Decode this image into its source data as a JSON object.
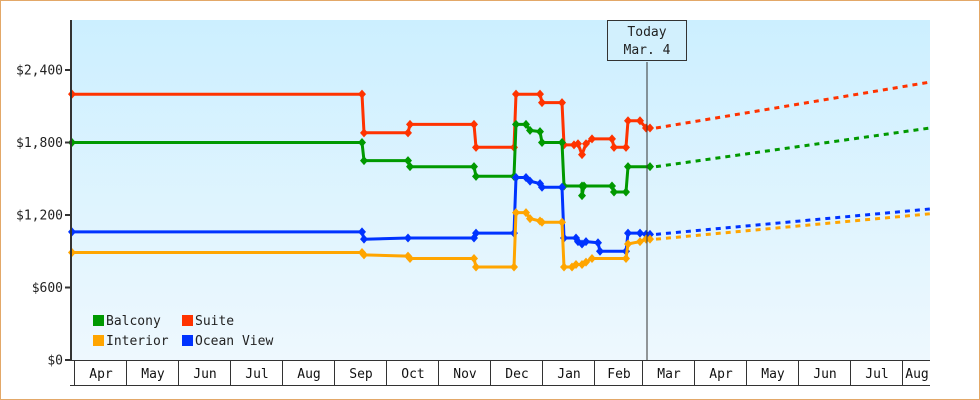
{
  "chart_data": {
    "type": "line",
    "title": "",
    "xlabel": "",
    "ylabel": "",
    "ylim": [
      0,
      2800
    ],
    "y_ticks": [
      "$0",
      "$600",
      "$1,200",
      "$1,800",
      "$2,400"
    ],
    "y_tick_values": [
      0,
      600,
      1200,
      1800,
      2400
    ],
    "x_months": [
      "Apr",
      "May",
      "Jun",
      "Jul",
      "Aug",
      "Sep",
      "Oct",
      "Nov",
      "Dec",
      "Jan",
      "Feb",
      "Mar",
      "Apr",
      "May",
      "Jun",
      "Jul",
      "Aug"
    ],
    "today_marker": {
      "line1": "Today",
      "line2": "Mar. 4"
    },
    "legend": [
      {
        "name": "Balcony",
        "color": "#009900"
      },
      {
        "name": "Suite",
        "color": "#ff3300"
      },
      {
        "name": "Interior",
        "color": "#ffa500"
      },
      {
        "name": "Ocean View",
        "color": "#0033ff"
      }
    ],
    "series": [
      {
        "name": "Suite",
        "color": "#ff3300",
        "points": [
          [
            72,
            2200
          ],
          [
            362,
            2200
          ],
          [
            364,
            1880
          ],
          [
            408,
            1880
          ],
          [
            410,
            1950
          ],
          [
            474,
            1950
          ],
          [
            476,
            1760
          ],
          [
            514,
            1760
          ],
          [
            516,
            2200
          ],
          [
            540,
            2200
          ],
          [
            542,
            2130
          ],
          [
            562,
            2130
          ],
          [
            564,
            1780
          ],
          [
            574,
            1780
          ],
          [
            578,
            1790
          ],
          [
            582,
            1700
          ],
          [
            586,
            1790
          ],
          [
            592,
            1830
          ],
          [
            612,
            1830
          ],
          [
            614,
            1760
          ],
          [
            626,
            1760
          ],
          [
            628,
            1980
          ],
          [
            640,
            1980
          ],
          [
            646,
            1920
          ],
          [
            650,
            1920
          ]
        ],
        "forecast": [
          [
            650,
            1920
          ],
          [
            930,
            2300
          ]
        ]
      },
      {
        "name": "Balcony",
        "color": "#009900",
        "points": [
          [
            72,
            1800
          ],
          [
            362,
            1800
          ],
          [
            364,
            1650
          ],
          [
            408,
            1650
          ],
          [
            410,
            1600
          ],
          [
            474,
            1600
          ],
          [
            476,
            1520
          ],
          [
            514,
            1520
          ],
          [
            516,
            1950
          ],
          [
            526,
            1950
          ],
          [
            530,
            1900
          ],
          [
            540,
            1890
          ],
          [
            542,
            1800
          ],
          [
            562,
            1800
          ],
          [
            564,
            1440
          ],
          [
            582,
            1440
          ],
          [
            582,
            1360
          ],
          [
            584,
            1440
          ],
          [
            612,
            1440
          ],
          [
            614,
            1390
          ],
          [
            626,
            1390
          ],
          [
            628,
            1600
          ],
          [
            648,
            1600
          ],
          [
            650,
            1600
          ]
        ],
        "forecast": [
          [
            650,
            1600
          ],
          [
            930,
            1920
          ]
        ]
      },
      {
        "name": "Ocean View",
        "color": "#0033ff",
        "points": [
          [
            72,
            1060
          ],
          [
            362,
            1060
          ],
          [
            364,
            1000
          ],
          [
            408,
            1010
          ],
          [
            410,
            1010
          ],
          [
            474,
            1010
          ],
          [
            476,
            1050
          ],
          [
            514,
            1050
          ],
          [
            516,
            1510
          ],
          [
            526,
            1510
          ],
          [
            530,
            1480
          ],
          [
            540,
            1460
          ],
          [
            542,
            1430
          ],
          [
            562,
            1430
          ],
          [
            564,
            1010
          ],
          [
            576,
            1010
          ],
          [
            578,
            980
          ],
          [
            582,
            960
          ],
          [
            586,
            980
          ],
          [
            598,
            970
          ],
          [
            600,
            900
          ],
          [
            626,
            900
          ],
          [
            628,
            1050
          ],
          [
            640,
            1050
          ],
          [
            646,
            1040
          ],
          [
            650,
            1040
          ]
        ],
        "forecast": [
          [
            650,
            1040
          ],
          [
            930,
            1250
          ]
        ]
      },
      {
        "name": "Interior",
        "color": "#ffa500",
        "points": [
          [
            72,
            890
          ],
          [
            362,
            890
          ],
          [
            364,
            870
          ],
          [
            408,
            860
          ],
          [
            410,
            840
          ],
          [
            474,
            840
          ],
          [
            476,
            770
          ],
          [
            514,
            770
          ],
          [
            516,
            1220
          ],
          [
            526,
            1220
          ],
          [
            530,
            1170
          ],
          [
            540,
            1150
          ],
          [
            542,
            1140
          ],
          [
            562,
            1140
          ],
          [
            564,
            770
          ],
          [
            572,
            770
          ],
          [
            576,
            790
          ],
          [
            582,
            790
          ],
          [
            586,
            810
          ],
          [
            592,
            840
          ],
          [
            612,
            840
          ],
          [
            626,
            840
          ],
          [
            628,
            960
          ],
          [
            640,
            980
          ],
          [
            646,
            1000
          ],
          [
            650,
            1000
          ]
        ],
        "forecast": [
          [
            650,
            1000
          ],
          [
            930,
            1210
          ]
        ]
      }
    ]
  }
}
